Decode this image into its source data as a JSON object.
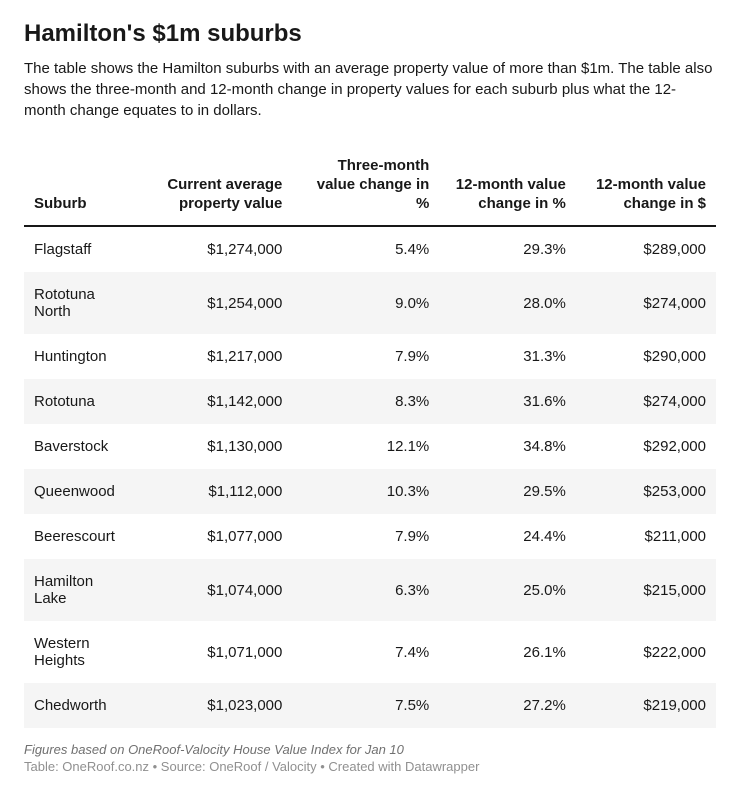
{
  "title": "Hamilton's $1m suburbs",
  "description": "The table shows the Hamilton suburbs with an average property value of more than $1m. The table also shows the three-month and 12-month change in property values for each suburb plus what the 12-month change equates to in dollars.",
  "table": {
    "type": "table",
    "header_fontweight": 700,
    "border_color": "#181818",
    "row_stripe_color": "#f5f5f5",
    "background_color": "#ffffff",
    "text_color": "#181818",
    "columns": [
      {
        "label": "Suburb",
        "align": "left"
      },
      {
        "label": "Current average property value",
        "align": "right"
      },
      {
        "label": "Three-month value change in %",
        "align": "right"
      },
      {
        "label": "12-month value change in %",
        "align": "right"
      },
      {
        "label": "12-month value change in $",
        "align": "right"
      }
    ],
    "rows": [
      {
        "suburb": "Flagstaff",
        "avg": "$1,274,000",
        "chg3m": "5.4%",
        "chg12m": "29.3%",
        "chg12d": "$289,000"
      },
      {
        "suburb": "Rototuna North",
        "avg": "$1,254,000",
        "chg3m": "9.0%",
        "chg12m": "28.0%",
        "chg12d": "$274,000"
      },
      {
        "suburb": "Huntington",
        "avg": "$1,217,000",
        "chg3m": "7.9%",
        "chg12m": "31.3%",
        "chg12d": "$290,000"
      },
      {
        "suburb": "Rototuna",
        "avg": "$1,142,000",
        "chg3m": "8.3%",
        "chg12m": "31.6%",
        "chg12d": "$274,000"
      },
      {
        "suburb": "Baverstock",
        "avg": "$1,130,000",
        "chg3m": "12.1%",
        "chg12m": "34.8%",
        "chg12d": "$292,000"
      },
      {
        "suburb": "Queenwood",
        "avg": "$1,112,000",
        "chg3m": "10.3%",
        "chg12m": "29.5%",
        "chg12d": "$253,000"
      },
      {
        "suburb": "Beerescourt",
        "avg": "$1,077,000",
        "chg3m": "7.9%",
        "chg12m": "24.4%",
        "chg12d": "$211,000"
      },
      {
        "suburb": "Hamilton Lake",
        "avg": "$1,074,000",
        "chg3m": "6.3%",
        "chg12m": "25.0%",
        "chg12d": "$215,000"
      },
      {
        "suburb": "Western Heights",
        "avg": "$1,071,000",
        "chg3m": "7.4%",
        "chg12m": "26.1%",
        "chg12d": "$222,000"
      },
      {
        "suburb": "Chedworth",
        "avg": "$1,023,000",
        "chg3m": "7.5%",
        "chg12m": "27.2%",
        "chg12d": "$219,000"
      }
    ]
  },
  "footnote_italic": "Figures based on OneRoof-Valocity House Value Index for Jan 10",
  "footnote_credits": "Table: OneRoof.co.nz • Source: OneRoof / Valocity • Created with Datawrapper"
}
